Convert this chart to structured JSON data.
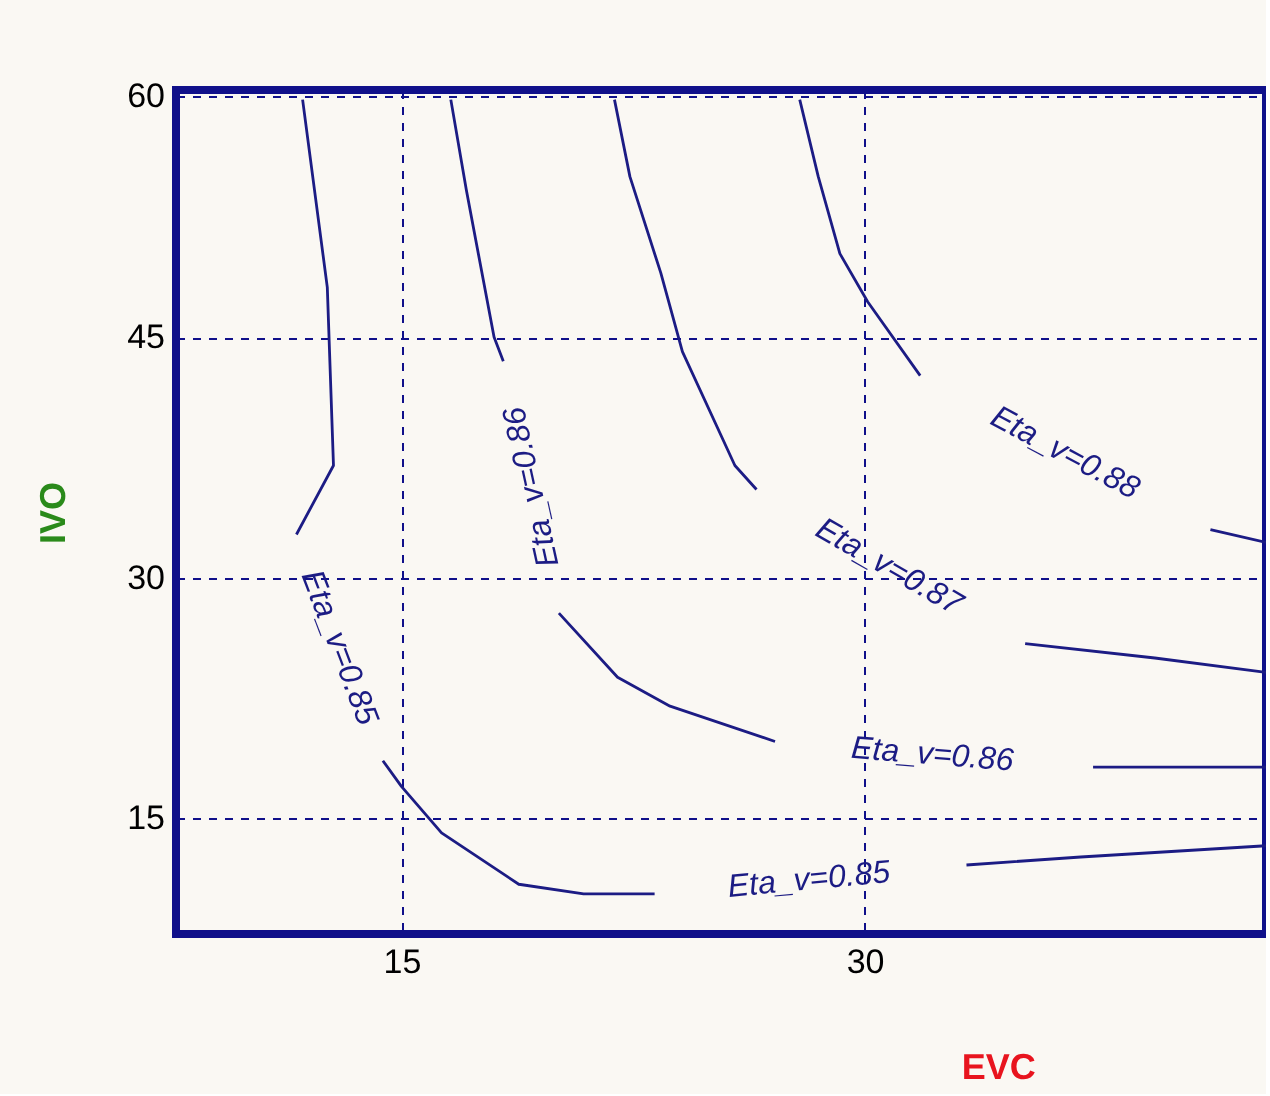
{
  "chart_data": {
    "type": "line",
    "xlabel": "EVC",
    "ylabel": "IVO",
    "xlim": [
      7.7,
      43
    ],
    "ylim": [
      7.8,
      60.4
    ],
    "xticks": [
      15,
      30
    ],
    "yticks": [
      15,
      30,
      45,
      60
    ],
    "grid": true,
    "marker": "none",
    "line_style": "solid",
    "series": [
      {
        "name": "Eta_v=0.85",
        "color": "#1c1c84",
        "x": [
          11.8,
          12.6,
          12.8,
          11.6,
          13.0,
          14.4,
          15.0,
          16.3,
          18.8,
          20.9,
          23.2,
          28.2,
          33.3,
          37.0,
          43.0
        ],
        "values": [
          59.8,
          48.1,
          37.0,
          32.7,
          null,
          18.6,
          17.0,
          14.1,
          10.9,
          10.3,
          10.3,
          null,
          12.1,
          12.6,
          13.3
        ]
      },
      {
        "name": "Eta_v=0.86",
        "color": "#1c1c84",
        "x": [
          16.6,
          17.1,
          18.0,
          18.3,
          19.2,
          20.1,
          22.0,
          23.7,
          27.1,
          32.2,
          37.4,
          43.0
        ],
        "values": [
          59.8,
          54.2,
          45.0,
          43.5,
          null,
          27.8,
          23.8,
          22.0,
          19.8,
          null,
          18.2,
          18.2
        ]
      },
      {
        "name": "Eta_v=0.87",
        "color": "#1c1c84",
        "x": [
          21.9,
          22.4,
          23.4,
          24.1,
          25.8,
          26.5,
          30.8,
          35.2,
          39.4,
          43.0
        ],
        "values": [
          59.8,
          55.0,
          49.0,
          44.1,
          37.0,
          35.5,
          null,
          25.9,
          25.0,
          24.1
        ]
      },
      {
        "name": "Eta_v=0.88",
        "color": "#1c1c84",
        "x": [
          27.9,
          28.5,
          29.2,
          30.1,
          31.8,
          36.5,
          41.2,
          43.0
        ],
        "values": [
          59.8,
          55.0,
          50.2,
          47.2,
          42.6,
          null,
          33.0,
          32.2
        ]
      }
    ],
    "annotations": [
      "Eta_v=0.85",
      "Eta_v=0.86"
    ]
  }
}
